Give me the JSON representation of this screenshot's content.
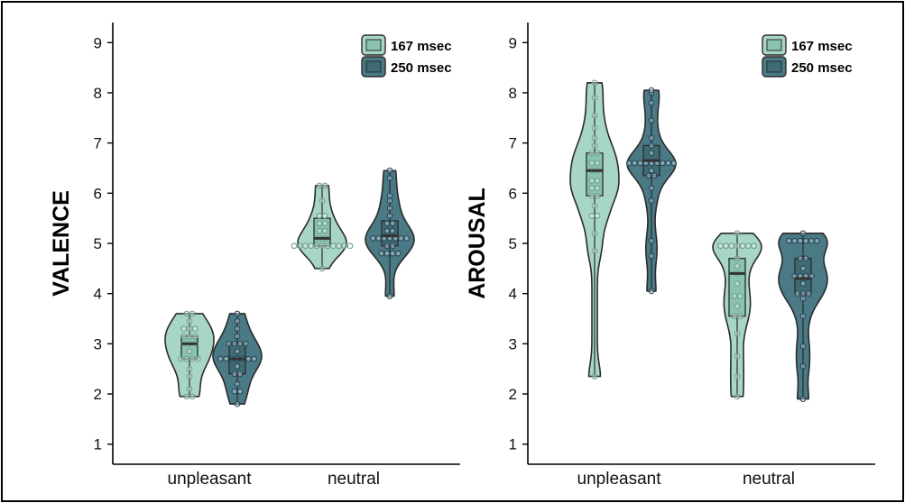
{
  "colors": {
    "group_167": "#a8d6c4",
    "group_250": "#4a7a85",
    "outline": "#2b2b2b",
    "box_167": "#8ac3b0",
    "box_250": "#3e6b74",
    "median": "#333333",
    "frame": "#000000"
  },
  "chart_data": [
    {
      "type": "violin",
      "panel": "left",
      "ylabel": "VALENCE",
      "xlabel": "",
      "ylim": [
        0.6,
        9.4
      ],
      "yticks": [
        1,
        2,
        3,
        4,
        5,
        6,
        7,
        8,
        9
      ],
      "categories": [
        "unpleasant",
        "neutral"
      ],
      "legend": {
        "position": "top-right",
        "entries": [
          "167 msec",
          "250 msec"
        ]
      },
      "series": [
        {
          "name": "167 msec",
          "groups": [
            {
              "category": "unpleasant",
              "q1": 2.7,
              "median": 3.0,
              "q3": 3.15,
              "points": [
                1.95,
                1.95,
                2.1,
                2.35,
                2.5,
                2.7,
                2.7,
                2.7,
                2.7,
                2.85,
                3.0,
                3.0,
                3.0,
                3.15,
                3.15,
                3.15,
                3.3,
                3.3,
                3.3,
                3.45,
                3.6,
                3.6
              ]
            },
            {
              "category": "neutral",
              "q1": 4.95,
              "median": 5.1,
              "q3": 5.5,
              "points": [
                4.5,
                4.95,
                4.95,
                4.95,
                4.95,
                4.95,
                4.95,
                4.95,
                4.95,
                4.95,
                4.95,
                4.95,
                5.1,
                5.1,
                5.25,
                5.25,
                5.4,
                5.4,
                5.55,
                5.55,
                5.85,
                6.15,
                6.15
              ]
            }
          ]
        },
        {
          "name": "250 msec",
          "groups": [
            {
              "category": "unpleasant",
              "q1": 2.4,
              "median": 2.7,
              "q3": 3.0,
              "points": [
                1.8,
                2.05,
                2.05,
                2.2,
                2.4,
                2.4,
                2.55,
                2.7,
                2.7,
                2.7,
                2.7,
                2.7,
                2.7,
                2.7,
                2.85,
                3.0,
                3.0,
                3.0,
                3.0,
                3.15,
                3.3,
                3.45,
                3.6
              ]
            },
            {
              "category": "neutral",
              "q1": 4.95,
              "median": 5.15,
              "q3": 5.45,
              "points": [
                3.95,
                4.8,
                4.8,
                4.8,
                4.8,
                4.95,
                4.95,
                5.1,
                5.1,
                5.1,
                5.1,
                5.1,
                5.1,
                5.1,
                5.25,
                5.25,
                5.4,
                5.4,
                5.55,
                5.7,
                5.85,
                5.95,
                6.3,
                6.45
              ]
            }
          ]
        }
      ]
    },
    {
      "type": "violin",
      "panel": "right",
      "ylabel": "AROUSAL",
      "xlabel": "",
      "ylim": [
        0.6,
        9.4
      ],
      "yticks": [
        1,
        2,
        3,
        4,
        5,
        6,
        7,
        8,
        9
      ],
      "categories": [
        "unpleasant",
        "neutral"
      ],
      "legend": {
        "position": "top-right",
        "entries": [
          "167 msec",
          "250 msec"
        ]
      },
      "series": [
        {
          "name": "167 msec",
          "groups": [
            {
              "category": "unpleasant",
              "q1": 5.95,
              "median": 6.45,
              "q3": 6.8,
              "points": [
                2.35,
                4.85,
                5.2,
                5.55,
                5.55,
                5.75,
                5.95,
                5.95,
                6.1,
                6.1,
                6.25,
                6.25,
                6.45,
                6.45,
                6.6,
                6.6,
                6.8,
                6.8,
                6.95,
                7.1,
                7.3,
                7.55,
                7.9,
                8.2
              ]
            },
            {
              "category": "neutral",
              "q1": 3.55,
              "median": 4.4,
              "q3": 4.7,
              "points": [
                1.95,
                2.35,
                2.75,
                3.2,
                3.55,
                3.55,
                3.75,
                3.95,
                3.95,
                4.2,
                4.4,
                4.55,
                4.7,
                4.95,
                4.95,
                4.95,
                4.95,
                4.95,
                4.95,
                4.95,
                5.2
              ]
            }
          ]
        },
        {
          "name": "250 msec",
          "groups": [
            {
              "category": "unpleasant",
              "q1": 6.35,
              "median": 6.65,
              "q3": 6.95,
              "points": [
                4.05,
                4.75,
                5.05,
                5.85,
                6.1,
                6.35,
                6.35,
                6.45,
                6.6,
                6.6,
                6.6,
                6.6,
                6.6,
                6.6,
                6.6,
                6.6,
                6.6,
                6.8,
                6.95,
                7.1,
                7.45,
                7.8,
                8.0,
                8.05
              ]
            },
            {
              "category": "neutral",
              "q1": 4.0,
              "median": 4.3,
              "q3": 4.7,
              "points": [
                1.9,
                2.55,
                2.95,
                3.55,
                3.9,
                4.0,
                4.0,
                4.0,
                4.2,
                4.35,
                4.35,
                4.35,
                4.35,
                4.5,
                4.7,
                4.7,
                5.05,
                5.05,
                5.05,
                5.05,
                5.05,
                5.05,
                5.2
              ]
            }
          ]
        }
      ]
    }
  ]
}
